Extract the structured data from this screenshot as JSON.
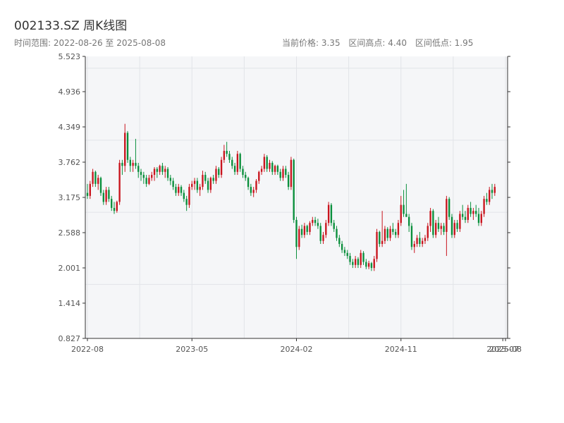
{
  "header": {
    "title": "002133.SZ 周K线图",
    "range": "时间范围: 2022-08-26 至 2025-08-08",
    "current_price": "当前价格: 3.35",
    "range_high": "区间高点: 4.40",
    "range_low": "区间低点: 1.95"
  },
  "colors": {
    "up": "#c9151e",
    "down": "#0a8f3c",
    "plot_bg": "#f5f6f8",
    "grid": "#e2e4e8",
    "axis": "#333333"
  },
  "chart_data": {
    "type": "candlestick",
    "title": "002133.SZ 周K线图",
    "ylim": [
      0.827,
      5.523
    ],
    "y_ticks": [
      "5.523",
      "4.936",
      "4.349",
      "3.762",
      "3.175",
      "2.588",
      "2.001",
      "1.414",
      "0.827"
    ],
    "x_ticks": [
      {
        "label": "2022-08",
        "index": 0
      },
      {
        "label": "2023-05",
        "index": 39
      },
      {
        "label": "2024-02",
        "index": 78
      },
      {
        "label": "2024-11",
        "index": 117
      },
      {
        "label": "2025-07",
        "index": 155
      },
      {
        "label": "2025-08",
        "index": 156
      }
    ],
    "x_count": 157,
    "grid": true,
    "ohlc": [
      [
        3.25,
        3.4,
        3.15,
        3.2
      ],
      [
        3.2,
        3.45,
        3.15,
        3.4
      ],
      [
        3.4,
        3.65,
        3.35,
        3.6
      ],
      [
        3.6,
        3.62,
        3.35,
        3.4
      ],
      [
        3.4,
        3.55,
        3.3,
        3.5
      ],
      [
        3.5,
        3.52,
        3.2,
        3.25
      ],
      [
        3.25,
        3.3,
        3.05,
        3.1
      ],
      [
        3.1,
        3.35,
        3.05,
        3.3
      ],
      [
        3.3,
        3.35,
        3.1,
        3.15
      ],
      [
        3.15,
        3.2,
        2.95,
        3.0
      ],
      [
        3.0,
        3.1,
        2.9,
        2.95
      ],
      [
        2.95,
        3.12,
        2.92,
        3.1
      ],
      [
        3.1,
        3.8,
        3.05,
        3.75
      ],
      [
        3.75,
        3.8,
        3.55,
        3.7
      ],
      [
        3.7,
        4.4,
        3.6,
        4.25
      ],
      [
        4.25,
        4.28,
        3.75,
        3.8
      ],
      [
        3.8,
        3.85,
        3.6,
        3.7
      ],
      [
        3.7,
        3.8,
        3.6,
        3.75
      ],
      [
        3.75,
        4.15,
        3.65,
        3.7
      ],
      [
        3.7,
        3.75,
        3.5,
        3.6
      ],
      [
        3.6,
        3.65,
        3.45,
        3.55
      ],
      [
        3.55,
        3.6,
        3.4,
        3.5
      ],
      [
        3.5,
        3.55,
        3.35,
        3.4
      ],
      [
        3.4,
        3.55,
        3.38,
        3.5
      ],
      [
        3.5,
        3.6,
        3.45,
        3.55
      ],
      [
        3.55,
        3.68,
        3.45,
        3.65
      ],
      [
        3.65,
        3.68,
        3.5,
        3.6
      ],
      [
        3.6,
        3.72,
        3.55,
        3.7
      ],
      [
        3.7,
        3.75,
        3.55,
        3.6
      ],
      [
        3.6,
        3.7,
        3.5,
        3.65
      ],
      [
        3.65,
        3.68,
        3.45,
        3.5
      ],
      [
        3.5,
        3.55,
        3.38,
        3.45
      ],
      [
        3.45,
        3.5,
        3.3,
        3.35
      ],
      [
        3.35,
        3.4,
        3.2,
        3.25
      ],
      [
        3.25,
        3.4,
        3.2,
        3.35
      ],
      [
        3.35,
        3.38,
        3.2,
        3.25
      ],
      [
        3.25,
        3.3,
        3.1,
        3.15
      ],
      [
        3.15,
        3.2,
        2.95,
        3.05
      ],
      [
        3.05,
        3.4,
        3.0,
        3.35
      ],
      [
        3.35,
        3.45,
        3.3,
        3.4
      ],
      [
        3.4,
        3.5,
        3.3,
        3.45
      ],
      [
        3.45,
        3.5,
        3.25,
        3.3
      ],
      [
        3.3,
        3.4,
        3.2,
        3.35
      ],
      [
        3.35,
        3.62,
        3.3,
        3.55
      ],
      [
        3.55,
        3.6,
        3.4,
        3.45
      ],
      [
        3.45,
        3.5,
        3.25,
        3.3
      ],
      [
        3.3,
        3.52,
        3.25,
        3.5
      ],
      [
        3.5,
        3.55,
        3.4,
        3.45
      ],
      [
        3.45,
        3.7,
        3.4,
        3.65
      ],
      [
        3.65,
        3.68,
        3.5,
        3.55
      ],
      [
        3.55,
        3.85,
        3.5,
        3.8
      ],
      [
        3.8,
        4.05,
        3.75,
        3.95
      ],
      [
        3.95,
        4.1,
        3.85,
        3.9
      ],
      [
        3.9,
        3.95,
        3.75,
        3.8
      ],
      [
        3.8,
        3.85,
        3.65,
        3.7
      ],
      [
        3.7,
        3.75,
        3.55,
        3.6
      ],
      [
        3.6,
        3.95,
        3.55,
        3.9
      ],
      [
        3.9,
        3.92,
        3.6,
        3.65
      ],
      [
        3.65,
        3.7,
        3.5,
        3.55
      ],
      [
        3.55,
        3.6,
        3.45,
        3.5
      ],
      [
        3.5,
        3.52,
        3.3,
        3.35
      ],
      [
        3.35,
        3.4,
        3.2,
        3.25
      ],
      [
        3.25,
        3.35,
        3.18,
        3.3
      ],
      [
        3.3,
        3.48,
        3.25,
        3.45
      ],
      [
        3.45,
        3.62,
        3.4,
        3.6
      ],
      [
        3.6,
        3.7,
        3.55,
        3.65
      ],
      [
        3.65,
        3.9,
        3.6,
        3.85
      ],
      [
        3.85,
        3.88,
        3.6,
        3.65
      ],
      [
        3.65,
        3.8,
        3.6,
        3.75
      ],
      [
        3.75,
        3.78,
        3.55,
        3.6
      ],
      [
        3.6,
        3.72,
        3.55,
        3.7
      ],
      [
        3.7,
        3.72,
        3.55,
        3.6
      ],
      [
        3.6,
        3.65,
        3.45,
        3.5
      ],
      [
        3.5,
        3.7,
        3.45,
        3.65
      ],
      [
        3.65,
        3.7,
        3.5,
        3.55
      ],
      [
        3.55,
        3.6,
        3.3,
        3.35
      ],
      [
        3.35,
        3.85,
        3.3,
        3.8
      ],
      [
        3.8,
        3.82,
        2.75,
        2.8
      ],
      [
        2.8,
        2.85,
        2.15,
        2.35
      ],
      [
        2.35,
        2.7,
        2.3,
        2.65
      ],
      [
        2.65,
        2.72,
        2.5,
        2.55
      ],
      [
        2.55,
        2.75,
        2.5,
        2.7
      ],
      [
        2.7,
        2.72,
        2.55,
        2.6
      ],
      [
        2.6,
        2.78,
        2.55,
        2.75
      ],
      [
        2.75,
        2.85,
        2.7,
        2.8
      ],
      [
        2.8,
        2.85,
        2.7,
        2.75
      ],
      [
        2.75,
        2.82,
        2.65,
        2.7
      ],
      [
        2.7,
        2.75,
        2.4,
        2.45
      ],
      [
        2.45,
        2.6,
        2.4,
        2.55
      ],
      [
        2.55,
        2.8,
        2.5,
        2.75
      ],
      [
        2.75,
        3.1,
        2.7,
        3.05
      ],
      [
        3.05,
        3.08,
        2.7,
        2.75
      ],
      [
        2.75,
        2.8,
        2.6,
        2.65
      ],
      [
        2.65,
        2.7,
        2.45,
        2.5
      ],
      [
        2.5,
        2.55,
        2.35,
        2.4
      ],
      [
        2.4,
        2.45,
        2.25,
        2.3
      ],
      [
        2.3,
        2.35,
        2.2,
        2.25
      ],
      [
        2.25,
        2.3,
        2.15,
        2.2
      ],
      [
        2.2,
        2.25,
        2.05,
        2.1
      ],
      [
        2.1,
        2.15,
        2.0,
        2.05
      ],
      [
        2.05,
        2.2,
        2.0,
        2.15
      ],
      [
        2.15,
        2.18,
        2.0,
        2.05
      ],
      [
        2.05,
        2.3,
        2.0,
        2.25
      ],
      [
        2.25,
        2.28,
        2.05,
        2.1
      ],
      [
        2.1,
        2.15,
        1.98,
        2.02
      ],
      [
        2.02,
        2.12,
        1.98,
        2.08
      ],
      [
        2.08,
        2.1,
        1.95,
        2.0
      ],
      [
        2.0,
        2.2,
        1.95,
        2.15
      ],
      [
        2.15,
        2.65,
        2.1,
        2.6
      ],
      [
        2.6,
        2.62,
        2.35,
        2.4
      ],
      [
        2.4,
        2.95,
        2.35,
        2.45
      ],
      [
        2.45,
        2.7,
        2.4,
        2.65
      ],
      [
        2.65,
        2.68,
        2.45,
        2.5
      ],
      [
        2.5,
        2.7,
        2.45,
        2.65
      ],
      [
        2.65,
        2.75,
        2.55,
        2.6
      ],
      [
        2.6,
        2.65,
        2.5,
        2.55
      ],
      [
        2.55,
        2.8,
        2.5,
        2.75
      ],
      [
        2.75,
        3.2,
        2.7,
        3.05
      ],
      [
        3.05,
        3.3,
        2.85,
        2.9
      ],
      [
        2.9,
        3.4,
        2.85,
        2.85
      ],
      [
        2.85,
        2.9,
        2.6,
        2.7
      ],
      [
        2.7,
        2.75,
        2.3,
        2.35
      ],
      [
        2.35,
        2.45,
        2.25,
        2.4
      ],
      [
        2.4,
        2.55,
        2.35,
        2.5
      ],
      [
        2.5,
        2.6,
        2.35,
        2.4
      ],
      [
        2.4,
        2.5,
        2.35,
        2.45
      ],
      [
        2.45,
        2.55,
        2.4,
        2.5
      ],
      [
        2.5,
        2.75,
        2.45,
        2.7
      ],
      [
        2.7,
        3.0,
        2.6,
        2.95
      ],
      [
        2.95,
        2.98,
        2.5,
        2.55
      ],
      [
        2.55,
        2.8,
        2.5,
        2.75
      ],
      [
        2.75,
        2.85,
        2.6,
        2.65
      ],
      [
        2.65,
        2.75,
        2.55,
        2.7
      ],
      [
        2.7,
        2.75,
        2.55,
        2.6
      ],
      [
        2.6,
        3.2,
        2.2,
        3.15
      ],
      [
        3.15,
        3.18,
        2.8,
        2.85
      ],
      [
        2.85,
        2.9,
        2.5,
        2.55
      ],
      [
        2.55,
        2.8,
        2.5,
        2.75
      ],
      [
        2.75,
        2.8,
        2.6,
        2.65
      ],
      [
        2.65,
        2.95,
        2.6,
        2.9
      ],
      [
        2.9,
        3.05,
        2.8,
        2.85
      ],
      [
        2.85,
        2.95,
        2.75,
        2.8
      ],
      [
        2.8,
        3.05,
        2.75,
        3.0
      ],
      [
        3.0,
        3.1,
        2.85,
        2.9
      ],
      [
        2.9,
        3.0,
        2.8,
        2.95
      ],
      [
        2.95,
        3.05,
        2.85,
        2.9
      ],
      [
        2.9,
        3.0,
        2.7,
        2.75
      ],
      [
        2.75,
        2.95,
        2.7,
        2.9
      ],
      [
        2.9,
        3.2,
        2.85,
        3.15
      ],
      [
        3.15,
        3.25,
        3.05,
        3.1
      ],
      [
        3.1,
        3.35,
        3.05,
        3.3
      ],
      [
        3.3,
        3.4,
        3.15,
        3.25
      ],
      [
        3.25,
        3.4,
        3.2,
        3.35
      ]
    ]
  }
}
